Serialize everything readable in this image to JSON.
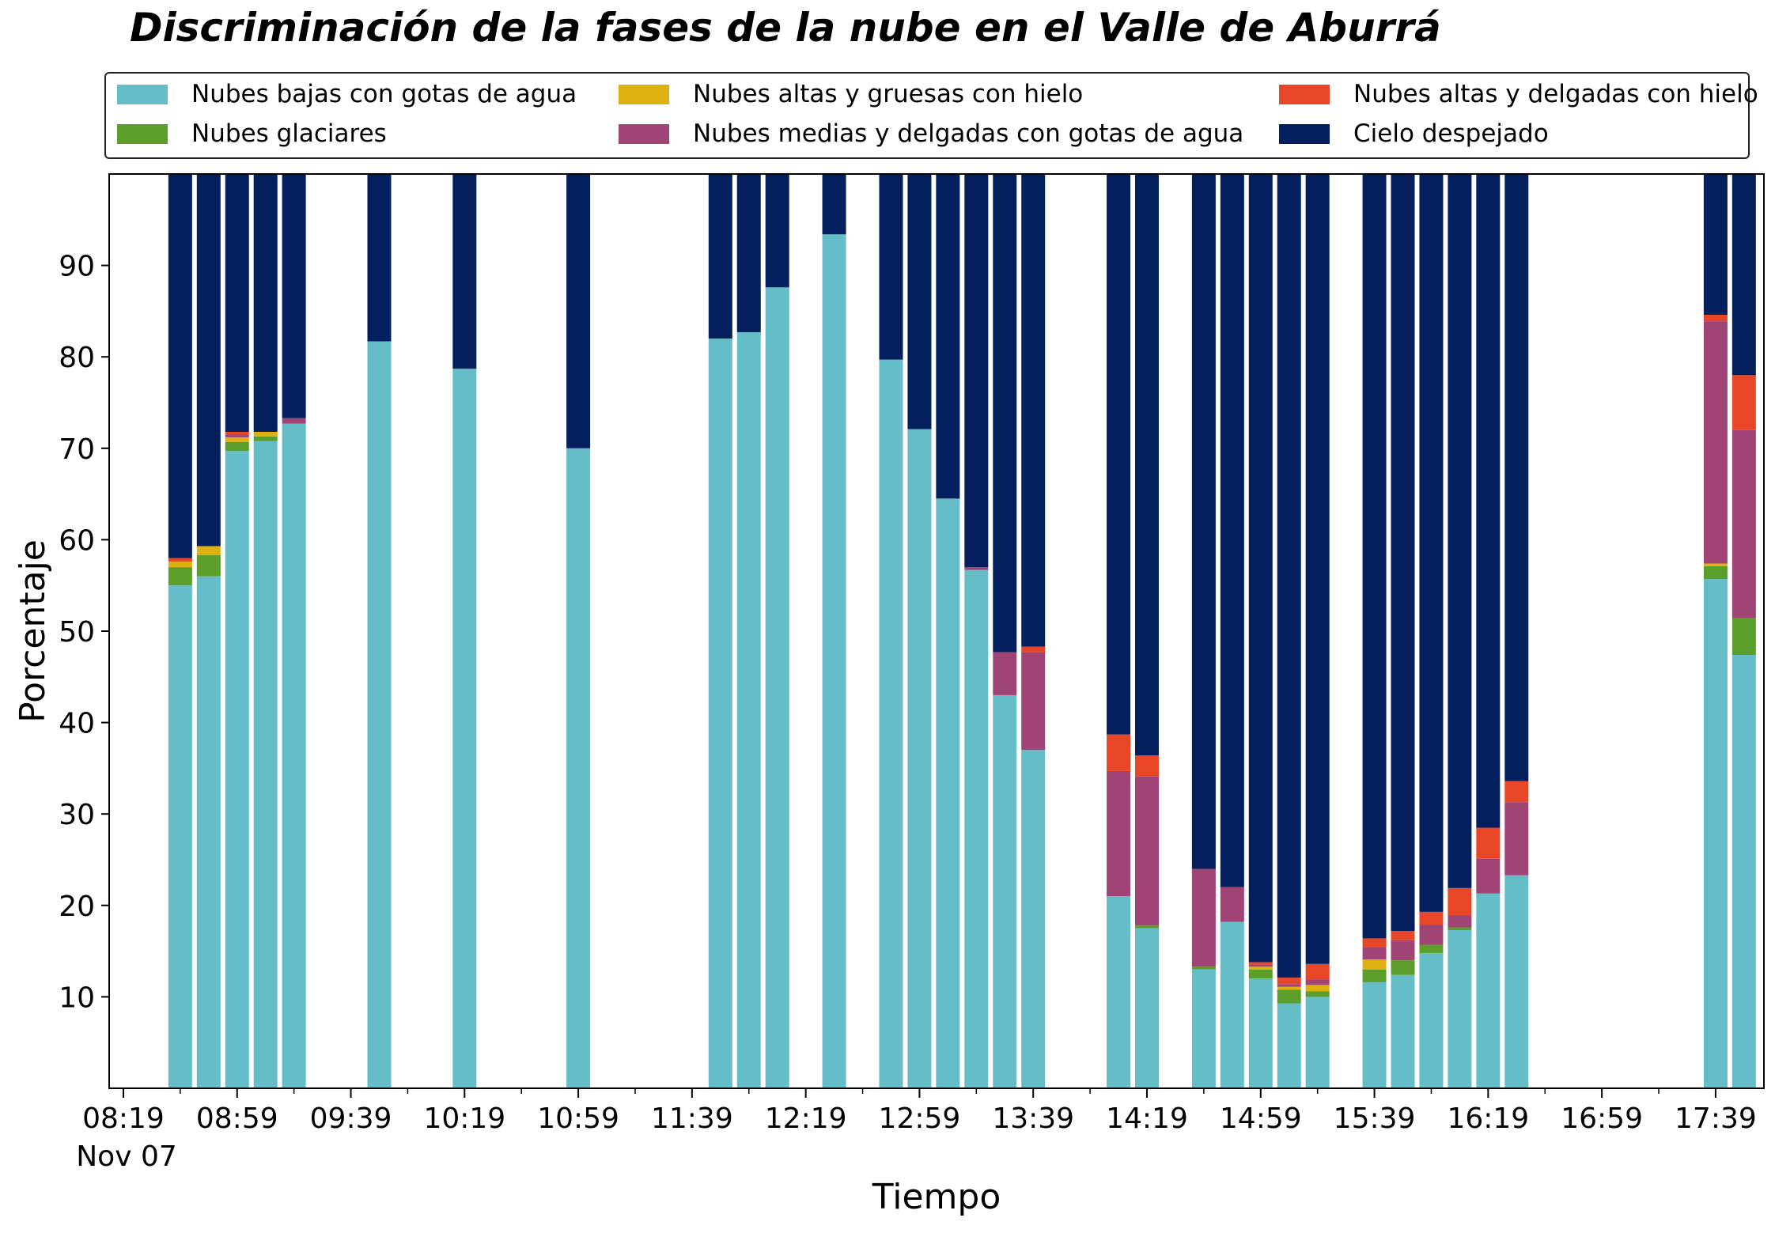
{
  "chart_data": {
    "type": "bar",
    "stacked": true,
    "title": "Discriminación de la fases de la nube en el Valle de Aburrá",
    "xlabel": "Tiempo",
    "ylabel": "Porcentaje",
    "ylim": [
      0,
      100
    ],
    "yticks": [
      10,
      20,
      30,
      40,
      50,
      60,
      70,
      80,
      90
    ],
    "date_label": "Nov 07",
    "xlim_minutes": [
      "08:14",
      "17:56"
    ],
    "xticks": [
      "08:19",
      "08:59",
      "09:39",
      "10:19",
      "10:59",
      "11:39",
      "12:19",
      "12:59",
      "13:39",
      "14:19",
      "14:59",
      "15:39",
      "16:19",
      "16:59",
      "17:39"
    ],
    "grid": false,
    "legend_position": "top (above plot, 3 columns)",
    "x": [
      "08:39",
      "08:49",
      "08:59",
      "09:09",
      "09:19",
      "09:49",
      "10:19",
      "10:59",
      "11:49",
      "11:59",
      "12:09",
      "12:29",
      "12:49",
      "12:59",
      "13:09",
      "13:19",
      "13:29",
      "13:39",
      "14:09",
      "14:19",
      "14:39",
      "14:49",
      "14:59",
      "15:09",
      "15:19",
      "15:39",
      "15:49",
      "15:59",
      "16:09",
      "16:19",
      "16:29",
      "17:39",
      "17:49"
    ],
    "series": [
      {
        "name": "Nubes bajas con gotas de agua",
        "color": "#65bdc8",
        "values": [
          55.0,
          56.0,
          69.7,
          70.8,
          72.7,
          81.7,
          78.7,
          70.0,
          82.0,
          82.7,
          87.6,
          93.4,
          79.7,
          72.1,
          64.5,
          56.7,
          43.0,
          37.0,
          21.0,
          17.5,
          13.0,
          18.2,
          12.0,
          9.3,
          10.0,
          11.6,
          12.4,
          14.8,
          17.3,
          21.3,
          23.3,
          55.7,
          47.4
        ]
      },
      {
        "name": "Nubes glaciares",
        "color": "#5c9e2a",
        "values": [
          2.0,
          2.3,
          1.0,
          0.5,
          0,
          0,
          0,
          0,
          0,
          0,
          0,
          0,
          0,
          0,
          0,
          0,
          0,
          0,
          0,
          0.3,
          0.3,
          0,
          1.0,
          1.5,
          0.6,
          1.4,
          1.6,
          0.9,
          0.3,
          0,
          0,
          1.4,
          4.0
        ]
      },
      {
        "name": "Nubes altas y gruesas con hielo",
        "color": "#dfb012",
        "values": [
          0.6,
          1.0,
          0.5,
          0.5,
          0,
          0,
          0,
          0,
          0,
          0,
          0,
          0,
          0,
          0,
          0,
          0,
          0,
          0,
          0,
          0,
          0,
          0,
          0.3,
          0.3,
          0.7,
          1.1,
          0,
          0,
          0,
          0,
          0,
          0.3,
          0
        ]
      },
      {
        "name": "Nubes medias y delgadas con gotas de agua",
        "color": "#a04375",
        "values": [
          0,
          0,
          0.3,
          0,
          0.6,
          0,
          0,
          0,
          0,
          0,
          0,
          0,
          0,
          0,
          0,
          0.3,
          4.7,
          10.7,
          13.7,
          16.3,
          10.7,
          3.8,
          0.2,
          0.3,
          0.6,
          1.3,
          2.2,
          2.2,
          1.3,
          3.8,
          8.0,
          26.5,
          20.6
        ]
      },
      {
        "name": "Nubes altas y delgadas con hielo",
        "color": "#e84626",
        "values": [
          0.4,
          0,
          0.3,
          0,
          0,
          0,
          0,
          0,
          0,
          0,
          0,
          0,
          0,
          0,
          0,
          0,
          0,
          0.6,
          4.0,
          2.3,
          0,
          0,
          0.3,
          0.7,
          1.7,
          1.0,
          1.0,
          1.4,
          3.0,
          3.4,
          2.3,
          0.7,
          6.0
        ]
      },
      {
        "name": "Cielo despejado",
        "color": "#031f5e",
        "values": [
          42.0,
          40.7,
          28.2,
          28.2,
          26.7,
          18.3,
          21.3,
          30.0,
          18.0,
          17.3,
          12.4,
          6.6,
          20.3,
          27.9,
          35.5,
          43.0,
          52.3,
          51.7,
          61.3,
          63.6,
          76.0,
          78.0,
          86.2,
          87.9,
          86.4,
          83.6,
          82.8,
          80.7,
          78.1,
          71.5,
          66.4,
          15.4,
          22.0
        ]
      }
    ]
  }
}
